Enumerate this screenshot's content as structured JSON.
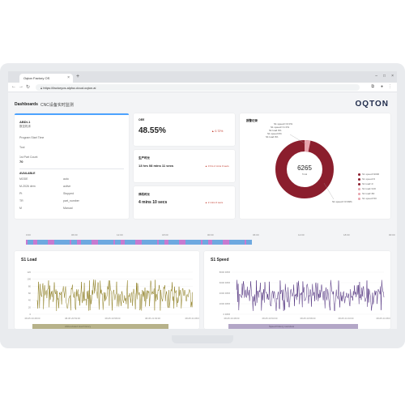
{
  "colors": {
    "accent_blue": "#4da3ff",
    "donut_main": "#8b1e2d",
    "donut_light": "#e8a3ad",
    "load_line": "#8a7a1a",
    "speed_line": "#4b2a7a",
    "timeline_blue": "#6ea9e0",
    "timeline_pink": "#c77bd0"
  },
  "browser": {
    "tab_title": "Oqton Factory OS",
    "url": "https://factoryos.alpha.cloud.oqton.ai"
  },
  "header": {
    "breadcrumb_1": "Dashboards",
    "breadcrumb_2": "CNC设备实时监测",
    "logo": "OQTON"
  },
  "machine": {
    "id": "ABDI-1",
    "subtitle": "数控机床",
    "field1_label": "Program Start Time",
    "field2_label": "Tool",
    "field3_label": "1st Part Count",
    "field3_value": "70",
    "list_header": "AVAILABLE",
    "rows": [
      {
        "k": "MODE",
        "v": "auto"
      },
      {
        "k": "M-2026 dem",
        "v": "active"
      },
      {
        "k": "Pt",
        "v": "Stopped"
      },
      {
        "k": "TR",
        "v": "part_number"
      },
      {
        "k": "M",
        "v": "Manual"
      }
    ]
  },
  "oee": {
    "label": "OEE",
    "value": "48.55%",
    "delta": "▲ 0.72%"
  },
  "production_time": {
    "label": "生产时长",
    "value": "13 hrs 08 mins 11 secs",
    "note": "▲ 0 hrs 2 mins 0 secs"
  },
  "downtime": {
    "label": "停机时长",
    "value": "4 mins 10 secs",
    "note": "▲ 2 mins 0 secs"
  },
  "alarms": {
    "title": "报警记录",
    "total_value": "6265",
    "total_label": "Total",
    "callouts": [
      "S1 speed<=0 0%",
      "S1 speed<=1 0%",
      "S1 load 0%",
      "S1 speed 0%",
      "S1 load 0%"
    ],
    "right_callout": "S1 speed<=0 99%",
    "legend": [
      "S1 speed>9000",
      "S1 speed<0",
      "S1 load>0",
      "S1 load<100",
      "S1 load>80",
      "S1 speed>50"
    ]
  },
  "timeline_ticks": [
    "0:00",
    "06:00",
    "12:00",
    "18:00",
    "00:00",
    "06:00",
    "12:00",
    "18:00",
    "00:00"
  ],
  "s1_load": {
    "title": "S1 Load",
    "y_ticks": [
      "120",
      "100",
      "80",
      "60",
      "40",
      "20",
      "0"
    ],
    "x_ticks": [
      "08-05 20:48:00",
      "08-05 20:53:00",
      "08-05 20:58:00",
      "08-05 21:03:00",
      "08-05 21:08:00"
    ],
    "strip_label": "Abbreviated load history"
  },
  "s1_speed": {
    "title": "S1 Speed",
    "y_ticks": [
      "8000 RPM",
      "6000 RPM",
      "4000 RPM",
      "2000 RPM",
      "0 RPM"
    ],
    "x_ticks": [
      "08-05 20:48:00",
      "08-05 20:53:00",
      "08-05 20:58:00",
      "08-05 21:03:00",
      "08-05 21:08:00"
    ],
    "strip_label": "Speed history overview"
  }
}
